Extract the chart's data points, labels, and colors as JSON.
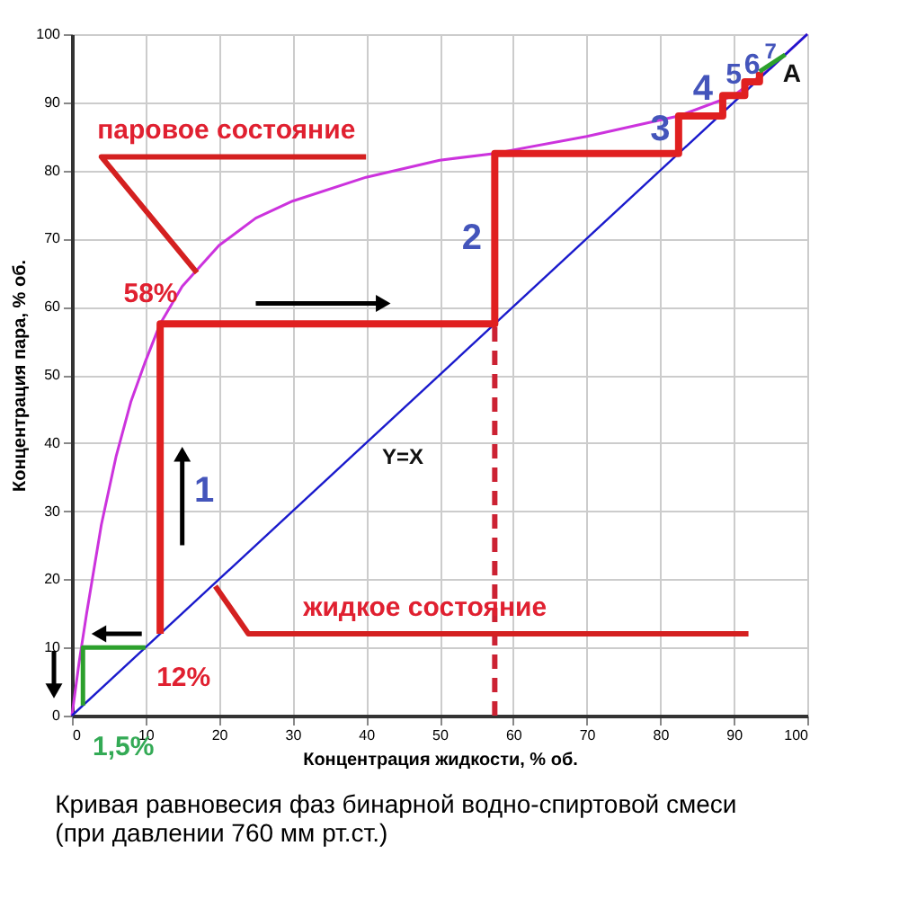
{
  "chart_data": {
    "type": "line",
    "xlabel": "Концентрация жидкости, % об.",
    "ylabel": "Концентрация пара, % об.",
    "xlim": [
      0,
      100
    ],
    "ylim": [
      0,
      100
    ],
    "xticks": [
      0,
      10,
      20,
      30,
      40,
      50,
      60,
      70,
      80,
      90,
      100
    ],
    "yticks": [
      0,
      10,
      20,
      30,
      40,
      50,
      60,
      70,
      80,
      90,
      100
    ],
    "grid": true,
    "marker": "none",
    "line_style": "solid",
    "series": [
      {
        "color": "#cc33dd",
        "x": [
          0,
          1,
          2,
          4,
          6,
          8,
          10,
          12,
          15,
          20,
          25,
          30,
          40,
          50,
          57.5,
          70,
          82.5,
          90,
          95,
          100
        ],
        "values": [
          0,
          8,
          15,
          28,
          38,
          46,
          52,
          57.5,
          63,
          69,
          73,
          75.5,
          79,
          81.5,
          82.5,
          85,
          88,
          91,
          95,
          100
        ]
      },
      {
        "color": "#1a1acc",
        "x": [
          0,
          100
        ],
        "values": [
          0,
          100
        ]
      },
      {
        "color": "#e02020",
        "x": [
          12,
          12,
          57.5,
          57.5,
          82.5,
          82.5,
          88.5,
          88.5,
          91.5,
          91.5,
          93.5,
          93.5
        ],
        "values": [
          12,
          57.5,
          57.5,
          82.5,
          82.5,
          88,
          88,
          91,
          91,
          93,
          93,
          94.5
        ]
      },
      {
        "color": "#2ca02c",
        "x": [
          1.5,
          1.5,
          10
        ],
        "values": [
          1.5,
          10,
          10
        ]
      },
      {
        "color": "#2ca02c",
        "x": [
          93.5,
          97
        ],
        "values": [
          94.5,
          97
        ]
      },
      {
        "color": "#cc2233",
        "line_style": "dashed",
        "x": [
          57.5,
          57.5
        ],
        "values": [
          0,
          57.5
        ]
      },
      {
        "color": "#d42020",
        "x": [
          40,
          4,
          17
        ],
        "values": [
          82,
          82,
          65
        ]
      },
      {
        "color": "#d42020",
        "x": [
          19.5,
          24,
          92
        ],
        "values": [
          19,
          12,
          12
        ]
      }
    ],
    "annotations": [
      "паровое состояние",
      "58%",
      {
        "text": "12%",
        "x": 12,
        "y": 12
      },
      "1,5%",
      "жидкое состояние",
      "1",
      "2",
      "3",
      "4",
      "5",
      "6",
      "7",
      "A",
      "Y=X",
      "Кривая равновесия фаз бинарной водно-спиртовой смеси",
      "(при давлении 760 мм рт.ст.)"
    ]
  }
}
